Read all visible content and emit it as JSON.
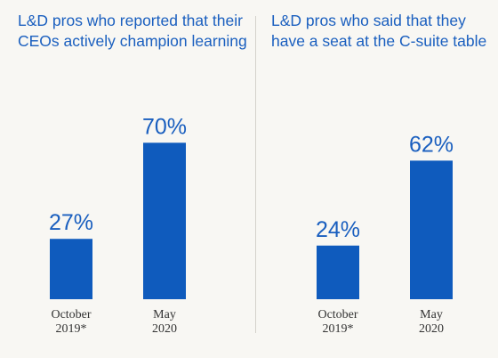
{
  "chart_data": [
    {
      "type": "bar",
      "title": "L&D pros who reported that their CEOs actively champion learning",
      "categories": [
        [
          "October",
          "2019*"
        ],
        [
          "May",
          "2020"
        ]
      ],
      "values": [
        27,
        70
      ],
      "value_labels": [
        "27%",
        "70%"
      ],
      "ylim": [
        0,
        100
      ],
      "bar_color": "#0f5bbd",
      "grid": false
    },
    {
      "type": "bar",
      "title": "L&D pros who said that they have a seat at the C-suite table",
      "categories": [
        [
          "October",
          "2019*"
        ],
        [
          "May",
          "2020"
        ]
      ],
      "values": [
        24,
        62
      ],
      "value_labels": [
        "24%",
        "62%"
      ],
      "ylim": [
        0,
        100
      ],
      "bar_color": "#0f5bbd",
      "grid": false
    }
  ]
}
